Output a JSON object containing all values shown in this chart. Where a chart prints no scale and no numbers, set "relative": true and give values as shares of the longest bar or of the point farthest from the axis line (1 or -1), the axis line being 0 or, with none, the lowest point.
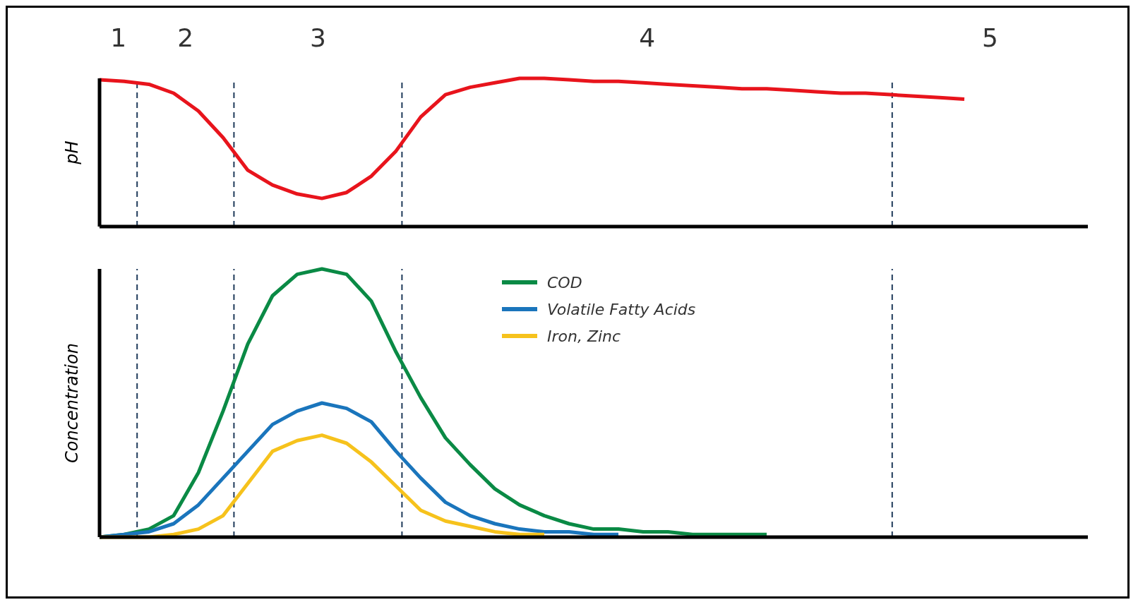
{
  "chart_data": [
    {
      "type": "line",
      "relative": true,
      "ylabel": "pH",
      "categories": [
        null,
        null,
        null,
        null,
        null,
        null,
        null,
        null,
        null,
        null,
        null,
        null,
        null,
        null,
        null,
        null,
        null,
        null,
        null,
        null,
        null,
        null,
        null,
        null,
        null,
        null,
        null,
        null,
        null,
        null,
        null,
        null,
        null,
        null,
        null,
        null,
        null,
        null,
        null,
        null,
        null
      ],
      "tick_labels": false,
      "legend": false,
      "marker": "none",
      "line_style": "solid",
      "annotations": [
        "1",
        "2",
        "3",
        "4",
        "5"
      ],
      "series": [
        {
          "color": "#e8141c",
          "values": [
            0.99,
            0.98,
            0.96,
            0.9,
            0.78,
            0.6,
            0.38,
            0.28,
            0.22,
            0.19,
            0.23,
            0.34,
            0.51,
            0.74,
            0.89,
            0.94,
            0.97,
            1,
            1,
            0.99,
            0.98,
            0.98,
            0.97,
            0.96,
            0.95,
            0.94,
            0.93,
            0.93,
            0.92,
            0.91,
            0.9,
            0.9,
            0.89,
            0.88,
            0.87,
            0.86,
            null,
            null,
            null,
            null,
            null
          ]
        }
      ]
    },
    {
      "type": "line",
      "relative": true,
      "ylabel": "Concentration",
      "categories": [
        null,
        null,
        null,
        null,
        null,
        null,
        null,
        null,
        null,
        null,
        null,
        null,
        null,
        null,
        null,
        null,
        null,
        null,
        null,
        null,
        null,
        null,
        null,
        null,
        null,
        null,
        null,
        null,
        null,
        null,
        null,
        null,
        null,
        null,
        null,
        null,
        null,
        null,
        null,
        null,
        null
      ],
      "tick_labels": false,
      "legend": "top",
      "marker": "none",
      "line_style": "solid",
      "series": [
        {
          "name": "COD",
          "color": "#0a8a45",
          "values": [
            0,
            0.01,
            0.03,
            0.08,
            0.24,
            0.47,
            0.72,
            0.9,
            0.98,
            1,
            0.98,
            0.88,
            0.69,
            0.52,
            0.37,
            0.27,
            0.18,
            0.12,
            0.08,
            0.05,
            0.03,
            0.03,
            0.02,
            0.02,
            0.01,
            0.01,
            0.01,
            0.01,
            null,
            null,
            null,
            null,
            null,
            null,
            null,
            null,
            null,
            null,
            null,
            null,
            null
          ]
        },
        {
          "name": "Volatile Fatty Acids",
          "color": "#1a75bc",
          "values": [
            0,
            0.01,
            0.02,
            0.05,
            0.12,
            0.22,
            0.32,
            0.42,
            0.47,
            0.5,
            0.48,
            0.43,
            0.32,
            0.22,
            0.13,
            0.08,
            0.05,
            0.03,
            0.02,
            0.02,
            0.01,
            0.01,
            null,
            null,
            null,
            null,
            null,
            null,
            null,
            null,
            null,
            null,
            null,
            null,
            null,
            null,
            null,
            null,
            null,
            null,
            null
          ]
        },
        {
          "name": "Iron, Zinc",
          "color": "#f6c21c",
          "values": [
            0,
            0,
            0,
            0.01,
            0.03,
            0.08,
            0.2,
            0.32,
            0.36,
            0.38,
            0.35,
            0.28,
            0.19,
            0.1,
            0.06,
            0.04,
            0.02,
            0.01,
            0.01,
            null,
            null,
            null,
            null,
            null,
            null,
            null,
            null,
            null,
            null,
            null,
            null,
            null,
            null,
            null,
            null,
            null,
            null,
            null,
            null,
            null,
            null
          ]
        }
      ]
    }
  ]
}
